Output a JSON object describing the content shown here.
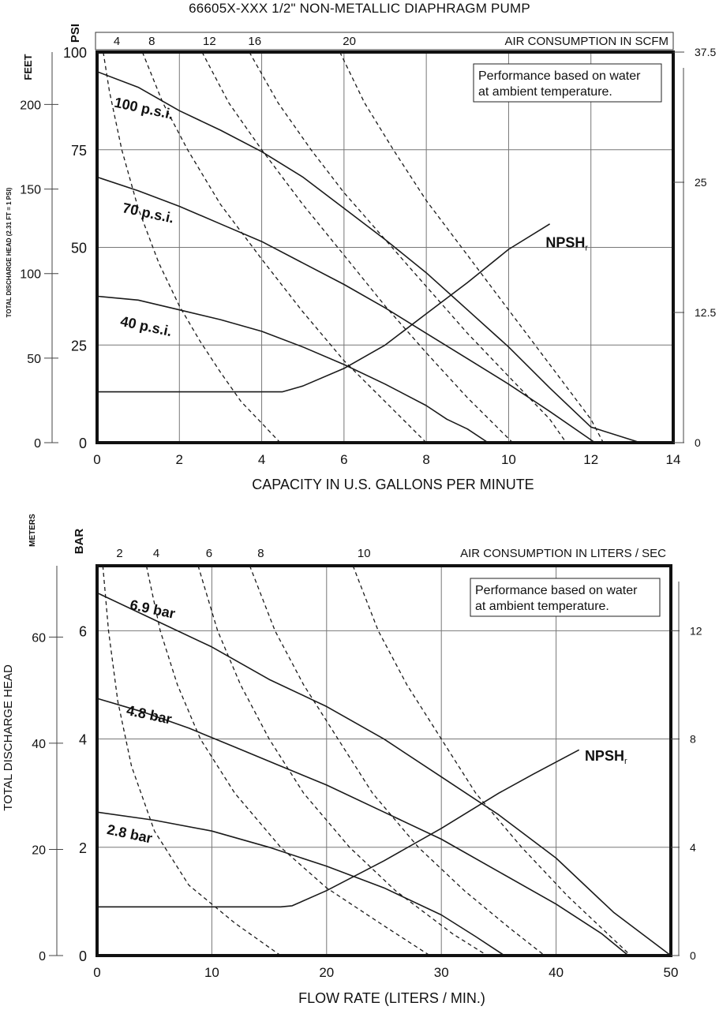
{
  "title": "66605X-XXX  1/2\" NON-METALLIC DIAPHRAGM PUMP",
  "note": [
    "Performance based on water",
    "at ambient temperature."
  ],
  "colors": {
    "line": "#1a1a1a",
    "grid": "#777777",
    "frame": "#111111",
    "bg": "#ffffff"
  },
  "chart_data": [
    {
      "type": "line",
      "units": "US",
      "title": "",
      "xlabel": "CAPACITY IN U.S. GALLONS PER MINUTE",
      "ylabel": "PSI",
      "ylabel_left": "FEET",
      "ylabel_left_note": "TOTAL DISCHARGE HEAD (2.31 FT = 1 PSI)",
      "top_axis_label": "AIR CONSUMPTION IN SCFM",
      "xlim": [
        0,
        14
      ],
      "ylim": [
        0,
        100
      ],
      "x_ticks": [
        0,
        2,
        4,
        6,
        8,
        10,
        12,
        14
      ],
      "y_ticks": [
        0,
        25,
        50,
        75,
        100
      ],
      "feet_ticks": [
        0,
        50,
        100,
        150,
        200
      ],
      "feet_per_unit": 2.31,
      "right_ticks": [
        "0",
        "12.5",
        "25",
        "37.5"
      ],
      "right_per_unit": 0.375,
      "air_ticks": [
        {
          "label": "4",
          "x": 0.25
        },
        {
          "label": "8",
          "x": 1.1
        },
        {
          "label": "12",
          "x": 2.5
        },
        {
          "label": "16",
          "x": 3.6
        },
        {
          "label": "20",
          "x": 5.9
        }
      ],
      "grid": true,
      "series": [
        {
          "name": "100 p.s.i.",
          "style": "solid",
          "points": [
            [
              0,
              95
            ],
            [
              1,
              91
            ],
            [
              2,
              85
            ],
            [
              3,
              80
            ],
            [
              4,
              74.5
            ],
            [
              5,
              68
            ],
            [
              6,
              60
            ],
            [
              7,
              52
            ],
            [
              8,
              43.5
            ],
            [
              9,
              34
            ],
            [
              10,
              24.5
            ],
            [
              11,
              14
            ],
            [
              12,
              4
            ],
            [
              13.2,
              0
            ]
          ]
        },
        {
          "name": "70 p.s.i.",
          "style": "solid",
          "points": [
            [
              0,
              68
            ],
            [
              1,
              64.5
            ],
            [
              2,
              60.5
            ],
            [
              3,
              56
            ],
            [
              4,
              51.5
            ],
            [
              5,
              46
            ],
            [
              6,
              40.5
            ],
            [
              7,
              34.5
            ],
            [
              8,
              28
            ],
            [
              9,
              21.5
            ],
            [
              10,
              15
            ],
            [
              11,
              8
            ],
            [
              12.1,
              0
            ]
          ]
        },
        {
          "name": "40 p.s.i.",
          "style": "solid",
          "points": [
            [
              0,
              37.5
            ],
            [
              1,
              36.5
            ],
            [
              2,
              34
            ],
            [
              3,
              31.5
            ],
            [
              4,
              28.5
            ],
            [
              5,
              24.5
            ],
            [
              6,
              20
            ],
            [
              7,
              15
            ],
            [
              8,
              9.5
            ],
            [
              8.5,
              6
            ],
            [
              9,
              3.5
            ],
            [
              9.5,
              0
            ]
          ]
        },
        {
          "name": "NPSHr",
          "style": "solid",
          "points": [
            [
              0,
              13
            ],
            [
              4.2,
              13
            ],
            [
              4.5,
              13
            ],
            [
              5,
              14.5
            ],
            [
              6,
              19
            ],
            [
              7,
              25
            ],
            [
              8,
              33
            ],
            [
              9,
              41
            ],
            [
              10,
              49.5
            ],
            [
              11,
              56
            ]
          ]
        },
        {
          "name": "4 SCFM",
          "style": "dashed",
          "points": [
            [
              0.15,
              100
            ],
            [
              0.3,
              90
            ],
            [
              0.6,
              75
            ],
            [
              1,
              60
            ],
            [
              1.5,
              46
            ],
            [
              2,
              35
            ],
            [
              2.5,
              26
            ],
            [
              3,
              18
            ],
            [
              3.5,
              10.5
            ],
            [
              4,
              5
            ],
            [
              4.45,
              0
            ]
          ]
        },
        {
          "name": "8 SCFM",
          "style": "dashed",
          "points": [
            [
              1.1,
              100
            ],
            [
              1.6,
              87
            ],
            [
              2.2,
              75
            ],
            [
              3,
              61
            ],
            [
              4,
              47
            ],
            [
              5,
              33.5
            ],
            [
              6,
              21
            ],
            [
              7,
              10.5
            ],
            [
              8,
              0
            ]
          ]
        },
        {
          "name": "12 SCFM",
          "style": "dashed",
          "points": [
            [
              2.55,
              100
            ],
            [
              3.2,
              87
            ],
            [
              4,
              75
            ],
            [
              5,
              61
            ],
            [
              6,
              48
            ],
            [
              7,
              35
            ],
            [
              8,
              23
            ],
            [
              9,
              11.5
            ],
            [
              10.1,
              0
            ]
          ]
        },
        {
          "name": "16 SCFM",
          "style": "dashed",
          "points": [
            [
              3.7,
              100
            ],
            [
              4.4,
              87
            ],
            [
              5.2,
              75
            ],
            [
              6,
              64
            ],
            [
              7,
              52
            ],
            [
              8,
              40
            ],
            [
              9,
              28
            ],
            [
              10,
              17
            ],
            [
              11,
              6
            ],
            [
              11.4,
              0
            ]
          ]
        },
        {
          "name": "20 SCFM",
          "style": "dashed",
          "points": [
            [
              5.9,
              100
            ],
            [
              6.5,
              87
            ],
            [
              7.2,
              75
            ],
            [
              8,
              62
            ],
            [
              9,
              48
            ],
            [
              10,
              34
            ],
            [
              11,
              20
            ],
            [
              12,
              6
            ],
            [
              12.3,
              0
            ]
          ]
        }
      ],
      "labels": [
        {
          "text": "100 p.s.i.",
          "x": 0.4,
          "y": 86
        },
        {
          "text": "70 p.s.i.",
          "x": 0.6,
          "y": 59
        },
        {
          "text": "40 p.s.i.",
          "x": 0.55,
          "y": 30
        },
        {
          "text": "NPSH",
          "sub": "r",
          "x": 10.9,
          "y": 50
        }
      ]
    },
    {
      "type": "line",
      "units": "Metric",
      "title": "",
      "xlabel": "FLOW RATE (LITERS / MIN.)",
      "ylabel": "BAR",
      "ylabel_left": "METERS",
      "ylabel_left_note": "TOTAL DISCHARGE HEAD",
      "top_axis_label": "AIR CONSUMPTION IN LITERS / SEC",
      "xlim": [
        0,
        50
      ],
      "ylim": [
        0,
        7.2
      ],
      "x_ticks": [
        0,
        10,
        20,
        30,
        40,
        50
      ],
      "y_ticks": [
        0,
        2,
        4,
        6
      ],
      "feet_ticks": [
        0,
        20,
        40,
        60
      ],
      "feet_per_unit": 10.2,
      "right_ticks": [
        "0",
        "4",
        "8",
        "12"
      ],
      "right_per_unit": 2,
      "air_ticks": [
        {
          "label": "2",
          "x": 1
        },
        {
          "label": "4",
          "x": 4.2
        },
        {
          "label": "6",
          "x": 8.8
        },
        {
          "label": "8",
          "x": 13.3
        },
        {
          "label": "10",
          "x": 22.3
        }
      ],
      "grid": true,
      "series": [
        {
          "name": "6.9 bar",
          "style": "solid",
          "points": [
            [
              0,
              6.7
            ],
            [
              5,
              6.2
            ],
            [
              10,
              5.7
            ],
            [
              15,
              5.1
            ],
            [
              20,
              4.6
            ],
            [
              25,
              4
            ],
            [
              30,
              3.3
            ],
            [
              35,
              2.6
            ],
            [
              40,
              1.8
            ],
            [
              45,
              0.8
            ],
            [
              50,
              0
            ]
          ]
        },
        {
          "name": "4.8 bar",
          "style": "solid",
          "points": [
            [
              0,
              4.75
            ],
            [
              4,
              4.5
            ],
            [
              8,
              4.2
            ],
            [
              12,
              3.85
            ],
            [
              16,
              3.5
            ],
            [
              20,
              3.15
            ],
            [
              25,
              2.65
            ],
            [
              30,
              2.15
            ],
            [
              35,
              1.55
            ],
            [
              40,
              0.95
            ],
            [
              44,
              0.4
            ],
            [
              46.3,
              0
            ]
          ]
        },
        {
          "name": "2.8 bar",
          "style": "solid",
          "points": [
            [
              0,
              2.65
            ],
            [
              5,
              2.5
            ],
            [
              10,
              2.3
            ],
            [
              15,
              2
            ],
            [
              20,
              1.65
            ],
            [
              25,
              1.25
            ],
            [
              30,
              0.75
            ],
            [
              33,
              0.35
            ],
            [
              35.5,
              0
            ]
          ]
        },
        {
          "name": "NPSHr",
          "style": "solid",
          "points": [
            [
              0,
              0.9
            ],
            [
              16,
              0.9
            ],
            [
              17,
              0.92
            ],
            [
              20,
              1.2
            ],
            [
              25,
              1.75
            ],
            [
              30,
              2.35
            ],
            [
              35,
              3
            ],
            [
              38,
              3.35
            ],
            [
              42,
              3.8
            ]
          ]
        },
        {
          "name": "2 L/S",
          "style": "dashed",
          "points": [
            [
              0.5,
              7.2
            ],
            [
              1,
              6
            ],
            [
              1.8,
              4.7
            ],
            [
              3,
              3.5
            ],
            [
              5,
              2.3
            ],
            [
              8,
              1.3
            ],
            [
              12,
              0.6
            ],
            [
              16,
              0
            ]
          ]
        },
        {
          "name": "4 L/S",
          "style": "dashed",
          "points": [
            [
              4.3,
              7.2
            ],
            [
              5.5,
              6
            ],
            [
              7,
              5
            ],
            [
              9,
              4
            ],
            [
              12,
              3
            ],
            [
              16,
              2
            ],
            [
              20,
              1.25
            ],
            [
              25,
              0.55
            ],
            [
              29,
              0
            ]
          ]
        },
        {
          "name": "6 L/S",
          "style": "dashed",
          "points": [
            [
              8.8,
              7.2
            ],
            [
              10.5,
              6
            ],
            [
              12.5,
              5
            ],
            [
              15,
              4
            ],
            [
              18,
              3
            ],
            [
              22,
              2
            ],
            [
              26,
              1.2
            ],
            [
              31,
              0.4
            ],
            [
              34,
              0
            ]
          ]
        },
        {
          "name": "8 L/S",
          "style": "dashed",
          "points": [
            [
              13.3,
              7.2
            ],
            [
              15.5,
              6
            ],
            [
              18,
              5
            ],
            [
              21,
              4
            ],
            [
              24,
              3
            ],
            [
              28,
              2
            ],
            [
              32,
              1.2
            ],
            [
              36,
              0.5
            ],
            [
              39,
              0
            ]
          ]
        },
        {
          "name": "10 L/S",
          "style": "dashed",
          "points": [
            [
              22.3,
              7.2
            ],
            [
              24.5,
              6
            ],
            [
              27,
              5
            ],
            [
              30,
              4
            ],
            [
              33,
              3
            ],
            [
              37,
              2
            ],
            [
              41,
              1.1
            ],
            [
              45,
              0.3
            ],
            [
              46.5,
              0
            ]
          ]
        }
      ],
      "labels": [
        {
          "text": "6.9 bar",
          "x": 2.8,
          "y": 6.4
        },
        {
          "text": "4.8 bar",
          "x": 2.5,
          "y": 4.45
        },
        {
          "text": "2.8 bar",
          "x": 0.8,
          "y": 2.25
        },
        {
          "text": "NPSH",
          "sub": "r",
          "x": 42.5,
          "y": 3.6
        }
      ]
    }
  ]
}
